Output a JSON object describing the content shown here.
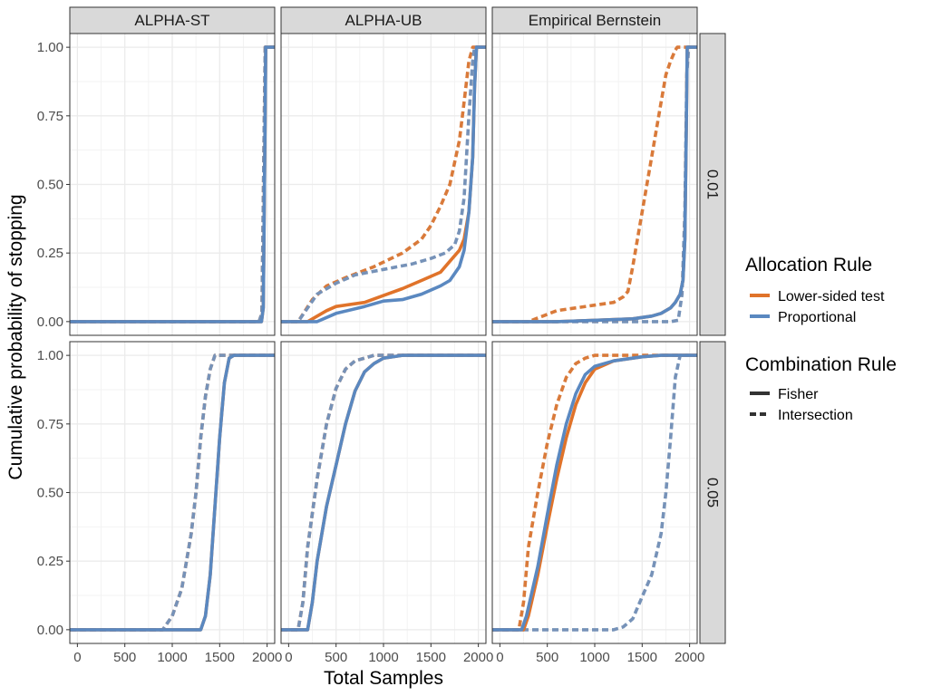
{
  "chart_data": {
    "type": "line",
    "xlabel": "Total Samples",
    "ylabel": "Cumulative probability of stopping",
    "xlim": [
      -80,
      2080
    ],
    "ylim": [
      -0.05,
      1.05
    ],
    "x_ticks": [
      0,
      500,
      1000,
      1500,
      2000
    ],
    "x_tick_labels": [
      "0",
      "500",
      "1000",
      "1500",
      "2000"
    ],
    "y_ticks": [
      0,
      0.25,
      0.5,
      0.75,
      1.0
    ],
    "y_tick_labels": [
      "0.00",
      "0.25",
      "0.50",
      "0.75",
      "1.00"
    ],
    "grid": true,
    "legend_position": "right",
    "colors": {
      "lower_fisher": "#e0732a",
      "lower_intersection": "#d97a3a",
      "prop_fisher": "#5a88c0",
      "prop_intersection": "#7692b8",
      "overlap": "#555555",
      "strip_bg": "#d9d9d9",
      "grid": "#ebebeb"
    },
    "columns": [
      "ALPHA-ST",
      "ALPHA-UB",
      "Empirical Bernstein"
    ],
    "rows": [
      "0.01",
      "0.05"
    ],
    "legend": {
      "allocation_title": "Allocation Rule",
      "allocation_items": [
        "Lower-sided test",
        "Proportional"
      ],
      "combination_title": "Combination Rule",
      "combination_items": [
        "Fisher",
        "Intersection"
      ]
    },
    "panels": [
      {
        "column": "ALPHA-ST",
        "row": "0.01",
        "series": [
          {
            "allocation": "Lower-sided test",
            "combination": "Fisher",
            "x": [
              -80,
              1940,
              1960,
              1975,
              1985,
              2080
            ],
            "y": [
              0,
              0,
              0.05,
              0.6,
              1,
              1
            ]
          },
          {
            "allocation": "Proportional",
            "combination": "Fisher",
            "x": [
              -80,
              1940,
              1960,
              1975,
              1985,
              2080
            ],
            "y": [
              0,
              0,
              0.05,
              0.6,
              1,
              1
            ]
          },
          {
            "allocation": "Lower-sided test",
            "combination": "Intersection",
            "x": [
              -80,
              1915,
              1945,
              1965,
              1980,
              2080
            ],
            "y": [
              0,
              0,
              0.03,
              0.6,
              1,
              1
            ]
          },
          {
            "allocation": "Proportional",
            "combination": "Intersection",
            "x": [
              -80,
              1915,
              1945,
              1965,
              1980,
              2080
            ],
            "y": [
              0,
              0,
              0.03,
              0.6,
              1,
              1
            ]
          }
        ]
      },
      {
        "column": "ALPHA-UB",
        "row": "0.01",
        "series": [
          {
            "allocation": "Lower-sided test",
            "combination": "Fisher",
            "x": [
              -80,
              200,
              400,
              500,
              800,
              1000,
              1200,
              1400,
              1600,
              1700,
              1800,
              1850,
              1900,
              1940,
              1960,
              1980,
              2080
            ],
            "y": [
              0,
              0,
              0.04,
              0.055,
              0.07,
              0.095,
              0.12,
              0.15,
              0.18,
              0.22,
              0.26,
              0.3,
              0.4,
              0.6,
              0.85,
              1,
              1
            ]
          },
          {
            "allocation": "Proportional",
            "combination": "Fisher",
            "x": [
              -80,
              300,
              500,
              800,
              1000,
              1200,
              1400,
              1600,
              1700,
              1800,
              1850,
              1900,
              1940,
              1960,
              1980,
              2080
            ],
            "y": [
              0,
              0,
              0.03,
              0.055,
              0.075,
              0.08,
              0.1,
              0.13,
              0.15,
              0.2,
              0.26,
              0.4,
              0.6,
              0.85,
              1,
              1
            ]
          },
          {
            "allocation": "Lower-sided test",
            "combination": "Intersection",
            "x": [
              -80,
              100,
              250,
              400,
              600,
              900,
              1200,
              1400,
              1500,
              1600,
              1700,
              1800,
              1850,
              1900,
              1940,
              2080
            ],
            "y": [
              0,
              0,
              0.08,
              0.13,
              0.16,
              0.2,
              0.25,
              0.3,
              0.35,
              0.42,
              0.5,
              0.66,
              0.8,
              0.95,
              1,
              1
            ]
          },
          {
            "allocation": "Proportional",
            "combination": "Intersection",
            "x": [
              -80,
              100,
              300,
              500,
              700,
              1000,
              1300,
              1500,
              1650,
              1750,
              1800,
              1850,
              1900,
              1940,
              1960,
              2080
            ],
            "y": [
              0,
              0,
              0.1,
              0.14,
              0.17,
              0.19,
              0.21,
              0.23,
              0.25,
              0.28,
              0.33,
              0.45,
              0.75,
              0.95,
              1,
              1
            ]
          }
        ]
      },
      {
        "column": "Empirical Bernstein",
        "row": "0.01",
        "series": [
          {
            "allocation": "Lower-sided test",
            "combination": "Fisher",
            "x": [
              -80,
              600,
              1000,
              1400,
              1600,
              1700,
              1800,
              1850,
              1900,
              1930,
              1950,
              1965,
              1975,
              2080
            ],
            "y": [
              0,
              0,
              0.005,
              0.01,
              0.02,
              0.03,
              0.05,
              0.07,
              0.1,
              0.15,
              0.3,
              0.7,
              1,
              1
            ]
          },
          {
            "allocation": "Proportional",
            "combination": "Fisher",
            "x": [
              -80,
              600,
              1000,
              1400,
              1600,
              1700,
              1800,
              1850,
              1900,
              1930,
              1950,
              1965,
              1975,
              2080
            ],
            "y": [
              0,
              0,
              0.005,
              0.01,
              0.02,
              0.03,
              0.05,
              0.07,
              0.1,
              0.15,
              0.3,
              0.7,
              1,
              1
            ]
          },
          {
            "allocation": "Lower-sided test",
            "combination": "Intersection",
            "x": [
              -80,
              300,
              600,
              1000,
              1200,
              1300,
              1350,
              1400,
              1450,
              1500,
              1600,
              1700,
              1750,
              1800,
              1850,
              1870,
              2080
            ],
            "y": [
              0,
              0,
              0.04,
              0.06,
              0.07,
              0.09,
              0.11,
              0.2,
              0.3,
              0.4,
              0.6,
              0.8,
              0.9,
              0.95,
              0.99,
              1,
              1
            ]
          },
          {
            "allocation": "Proportional",
            "combination": "Intersection",
            "x": [
              -80,
              1800,
              1880,
              1920,
              1950,
              1970,
              1990,
              2080
            ],
            "y": [
              0,
              0,
              0.005,
              0.1,
              0.4,
              0.9,
              1,
              1
            ]
          }
        ]
      },
      {
        "column": "ALPHA-ST",
        "row": "0.05",
        "series": [
          {
            "allocation": "Lower-sided test",
            "combination": "Fisher",
            "x": [
              -80,
              1300,
              1350,
              1400,
              1450,
              1500,
              1550,
              1600,
              1650,
              2080
            ],
            "y": [
              0,
              0,
              0.05,
              0.2,
              0.45,
              0.7,
              0.9,
              0.99,
              1,
              1
            ]
          },
          {
            "allocation": "Proportional",
            "combination": "Fisher",
            "x": [
              -80,
              1300,
              1350,
              1400,
              1450,
              1500,
              1550,
              1600,
              1650,
              2080
            ],
            "y": [
              0,
              0,
              0.05,
              0.2,
              0.45,
              0.7,
              0.9,
              0.99,
              1,
              1
            ]
          },
          {
            "allocation": "Lower-sided test",
            "combination": "Intersection",
            "x": [
              -80,
              900,
              1000,
              1100,
              1200,
              1250,
              1300,
              1350,
              1400,
              1450,
              1500,
              2080
            ],
            "y": [
              0,
              0,
              0.05,
              0.15,
              0.35,
              0.5,
              0.7,
              0.85,
              0.95,
              1,
              1,
              1
            ]
          },
          {
            "allocation": "Proportional",
            "combination": "Intersection",
            "x": [
              -80,
              900,
              1000,
              1100,
              1200,
              1250,
              1300,
              1350,
              1400,
              1450,
              1500,
              2080
            ],
            "y": [
              0,
              0,
              0.05,
              0.15,
              0.35,
              0.5,
              0.7,
              0.85,
              0.95,
              1,
              1,
              1
            ]
          }
        ]
      },
      {
        "column": "ALPHA-UB",
        "row": "0.05",
        "series": [
          {
            "allocation": "Lower-sided test",
            "combination": "Fisher",
            "x": [
              -80,
              200,
              250,
              300,
              400,
              500,
              600,
              700,
              800,
              900,
              1000,
              1200,
              2080
            ],
            "y": [
              0,
              0,
              0.1,
              0.25,
              0.45,
              0.6,
              0.75,
              0.87,
              0.94,
              0.97,
              0.99,
              1,
              1
            ]
          },
          {
            "allocation": "Proportional",
            "combination": "Fisher",
            "x": [
              -80,
              200,
              250,
              300,
              400,
              500,
              600,
              700,
              800,
              900,
              1000,
              1200,
              2080
            ],
            "y": [
              0,
              0,
              0.1,
              0.25,
              0.45,
              0.6,
              0.75,
              0.87,
              0.94,
              0.97,
              0.99,
              1,
              1
            ]
          },
          {
            "allocation": "Lower-sided test",
            "combination": "Intersection",
            "x": [
              -80,
              100,
              150,
              200,
              300,
              400,
              500,
              600,
              700,
              800,
              900,
              2080
            ],
            "y": [
              0,
              0,
              0.1,
              0.3,
              0.55,
              0.75,
              0.88,
              0.95,
              0.98,
              0.99,
              1,
              1
            ]
          },
          {
            "allocation": "Proportional",
            "combination": "Intersection",
            "x": [
              -80,
              100,
              150,
              200,
              300,
              400,
              500,
              600,
              700,
              800,
              900,
              2080
            ],
            "y": [
              0,
              0,
              0.1,
              0.3,
              0.55,
              0.75,
              0.88,
              0.95,
              0.98,
              0.99,
              1,
              1
            ]
          }
        ]
      },
      {
        "column": "Empirical Bernstein",
        "row": "0.05",
        "series": [
          {
            "allocation": "Lower-sided test",
            "combination": "Fisher",
            "x": [
              -80,
              250,
              300,
              400,
              500,
              600,
              700,
              800,
              900,
              1000,
              1200,
              1500,
              1700,
              2080
            ],
            "y": [
              0,
              0,
              0.05,
              0.2,
              0.38,
              0.55,
              0.7,
              0.82,
              0.9,
              0.95,
              0.98,
              0.995,
              1,
              1
            ]
          },
          {
            "allocation": "Proportional",
            "combination": "Fisher",
            "x": [
              -80,
              230,
              280,
              400,
              500,
              600,
              700,
              800,
              900,
              1000,
              1200,
              1500,
              1700,
              2080
            ],
            "y": [
              0,
              0,
              0.05,
              0.23,
              0.42,
              0.6,
              0.75,
              0.86,
              0.93,
              0.96,
              0.98,
              0.995,
              1,
              1
            ]
          },
          {
            "allocation": "Lower-sided test",
            "combination": "Intersection",
            "x": [
              -80,
              200,
              250,
              300,
              400,
              500,
              600,
              700,
              800,
              900,
              1000,
              2080
            ],
            "y": [
              0,
              0,
              0.1,
              0.3,
              0.5,
              0.68,
              0.82,
              0.92,
              0.97,
              0.99,
              1,
              1
            ]
          },
          {
            "allocation": "Proportional",
            "combination": "Intersection",
            "x": [
              -80,
              1200,
              1300,
              1400,
              1500,
              1600,
              1700,
              1750,
              1800,
              1850,
              1900,
              2080
            ],
            "y": [
              0,
              0,
              0.01,
              0.04,
              0.12,
              0.2,
              0.35,
              0.5,
              0.7,
              0.92,
              1,
              1
            ]
          }
        ]
      }
    ]
  }
}
